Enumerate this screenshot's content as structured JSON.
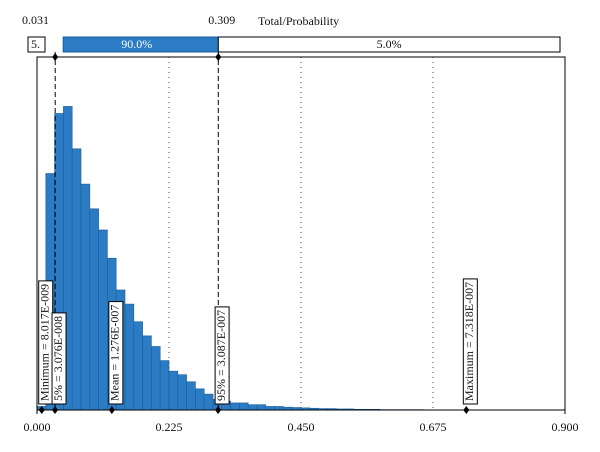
{
  "chart_data": {
    "type": "histogram",
    "bins": [
      0,
      0.015,
      0.03,
      0.045,
      0.06,
      0.075,
      0.09,
      0.105,
      0.12,
      0.135,
      0.15,
      0.165,
      0.18,
      0.195,
      0.21,
      0.225,
      0.24,
      0.255,
      0.27,
      0.285,
      0.3,
      0.315,
      0.33,
      0.345,
      0.36,
      0.375,
      0.39,
      0.405,
      0.42,
      0.435,
      0.45,
      0.465,
      0.48,
      0.495,
      0.51,
      0.525,
      0.54,
      0.555,
      0.57,
      0.585,
      0.6,
      0.615,
      0.63,
      0.645,
      0.66,
      0.675,
      0.69,
      0.705,
      0.72,
      0.735
    ],
    "values": [
      0.1,
      6.7,
      8.4,
      8.6,
      7.4,
      6.4,
      5.7,
      5.1,
      4.3,
      3.4,
      3.0,
      2.5,
      2.1,
      1.8,
      1.4,
      1.1,
      1.0,
      0.8,
      0.6,
      0.45,
      0.3,
      0.25,
      0.2,
      0.2,
      0.15,
      0.15,
      0.1,
      0.1,
      0.08,
      0.07,
      0.06,
      0.05,
      0.04,
      0.04,
      0.03,
      0.03,
      0.02,
      0.02,
      0.02,
      0.01,
      0.01,
      0.01,
      0.01,
      0.01,
      0.005,
      0.005,
      0.005,
      0.005,
      0.005
    ],
    "color": "#2b7cc4",
    "xlim": [
      0,
      0.9
    ],
    "ylim": [
      0,
      10
    ],
    "xticks": [
      {
        "value": 0,
        "label": "0.000"
      },
      0.225,
      {
        "value": 0.45,
        "label": "0.450"
      },
      0.675,
      {
        "value": 0.9,
        "label": "0.900"
      }
    ],
    "grid": true,
    "probability_bar": {
      "title": "Total/Probability",
      "delimiters": [
        0.031,
        0.309
      ],
      "values": [
        5,
        90,
        5
      ],
      "value_labels": [
        "5.",
        "90.0%",
        "5.0%"
      ]
    },
    "markers": [
      {
        "label": "Minimum = 8.017E-009",
        "value": 0.008017
      },
      {
        "label": "5% = 3.076E-008",
        "value": 0.03076
      },
      {
        "label": "Mean = 1.276E-007",
        "value": 0.1276
      },
      {
        "label": "95% = 3.087E-007",
        "value": 0.3087
      },
      {
        "label": "Maximum = 7.318E-007",
        "value": 0.7318
      }
    ]
  }
}
